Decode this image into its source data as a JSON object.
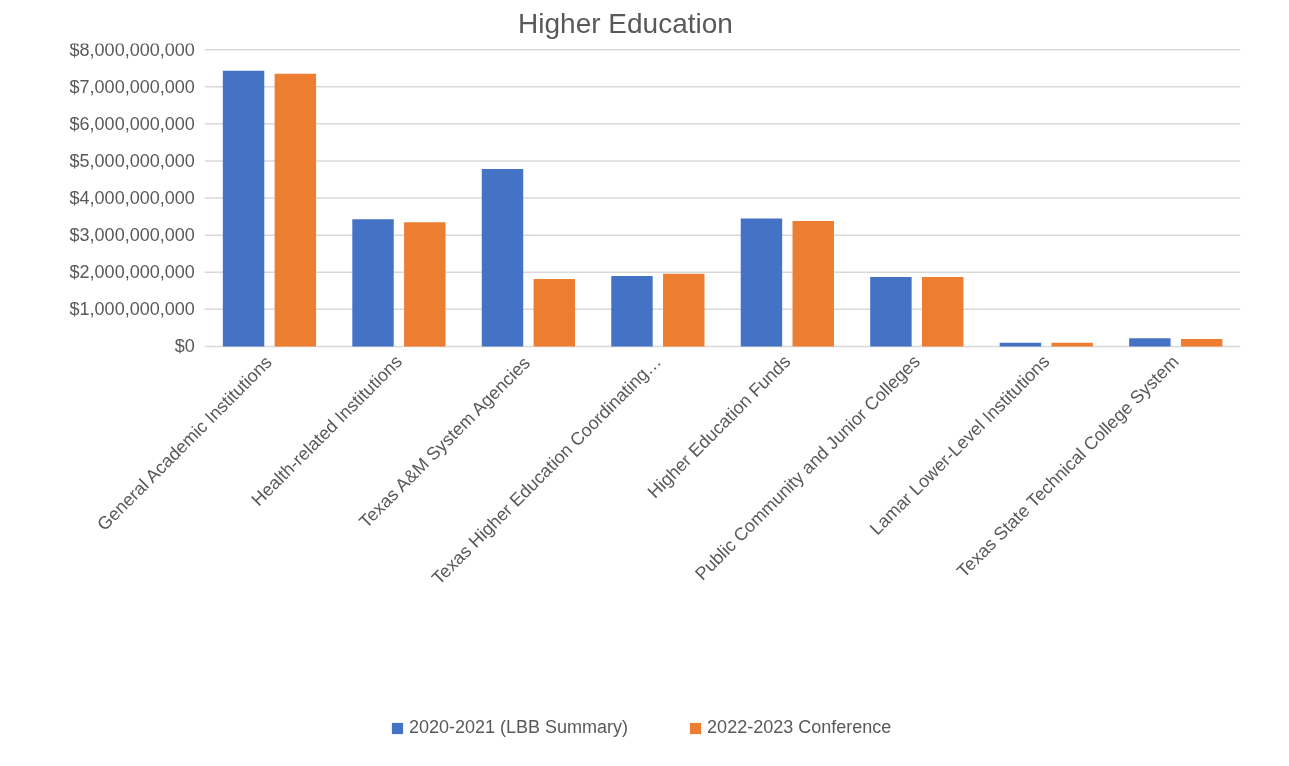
{
  "chart_data": {
    "type": "bar",
    "title": "Higher Education",
    "categories": [
      "General Academic Institutions",
      "Health-related Institutions",
      "Texas A&M System Agencies",
      "Texas Higher Education Coordinating…",
      "Higher Education Funds",
      "Public Community and Junior Colleges",
      "Lamar Lower-Level Institutions",
      "Texas State Technical College System"
    ],
    "series": [
      {
        "name": "2020-2021 (LBB Summary)",
        "color": "#4472c4",
        "values": [
          7430000000,
          3430000000,
          4780000000,
          1900000000,
          3450000000,
          1870000000,
          100000000,
          220000000
        ]
      },
      {
        "name": "2022-2023 Conference",
        "color": "#ed7d31",
        "values": [
          7350000000,
          3350000000,
          1820000000,
          1960000000,
          3380000000,
          1870000000,
          100000000,
          200000000
        ]
      }
    ],
    "ylim": [
      0,
      8000000000
    ],
    "yticks": [
      {
        "value": 0,
        "label": "$0"
      },
      {
        "value": 1000000000,
        "label": "$1,000,000,000"
      },
      {
        "value": 2000000000,
        "label": "$2,000,000,000"
      },
      {
        "value": 3000000000,
        "label": "$3,000,000,000"
      },
      {
        "value": 4000000000,
        "label": "$4,000,000,000"
      },
      {
        "value": 5000000000,
        "label": "$5,000,000,000"
      },
      {
        "value": 6000000000,
        "label": "$6,000,000,000"
      },
      {
        "value": 7000000000,
        "label": "$7,000,000,000"
      },
      {
        "value": 8000000000,
        "label": "$8,000,000,000"
      }
    ],
    "grid": "y",
    "legend": "bottom"
  }
}
